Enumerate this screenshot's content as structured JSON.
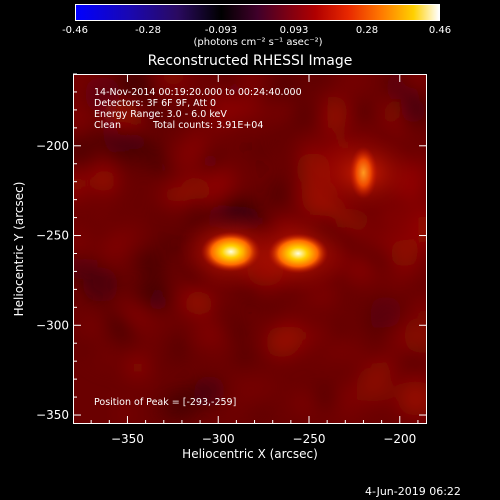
{
  "colorbar": {
    "ticks": [
      "-0.46",
      "-0.28",
      "-0.093",
      "0.093",
      "0.28",
      "0.46"
    ],
    "units": "(photons cm⁻² s⁻¹ asec⁻²)",
    "min": -0.46,
    "max": 0.46
  },
  "chart_data": {
    "type": "heatmap",
    "title": "Reconstructed RHESSI Image",
    "xlabel": "Heliocentric X (arcsec)",
    "ylabel": "Heliocentric Y (arcsec)",
    "xlim": [
      -380,
      -185
    ],
    "ylim": [
      -355,
      -160
    ],
    "xticks": [
      -350,
      -300,
      -250,
      -200
    ],
    "yticks": [
      -200,
      -250,
      -300,
      -350
    ],
    "annotations": {
      "time_range": "14-Nov-2014 00:19:20.000 to 00:24:40.000",
      "detectors": "Detectors: 3F 6F 9F, Att 0",
      "energy": "Energy Range: 3.0 - 6.0 keV",
      "method": "Clean",
      "total_counts": "Total counts: 3.91E+04",
      "peak": "Position of Peak = [-293,-259]"
    },
    "sources": [
      {
        "x": -293,
        "y": -259,
        "value": 0.46
      },
      {
        "x": -256,
        "y": -260,
        "value": 0.4
      },
      {
        "x": -220,
        "y": -215,
        "value": 0.3
      }
    ],
    "peak_position": [
      -293,
      -259
    ]
  },
  "datestamp": "4-Jun-2019 06:22"
}
